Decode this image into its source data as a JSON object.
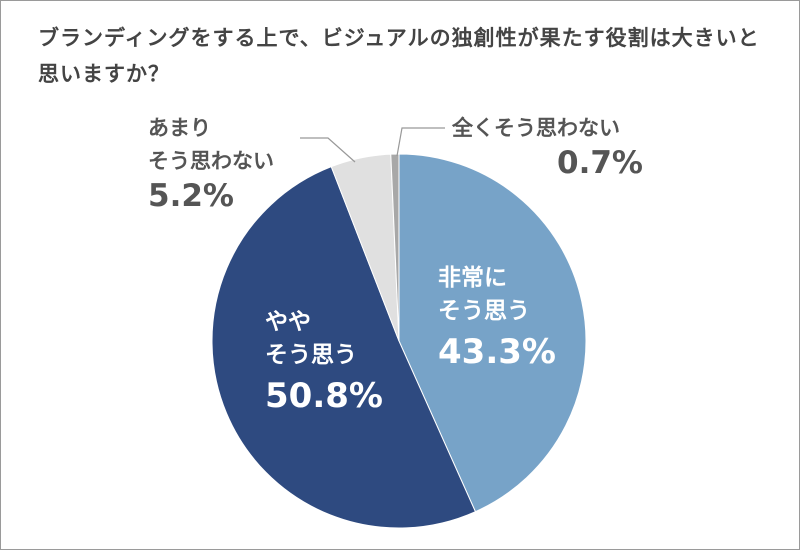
{
  "chart_data": {
    "type": "pie",
    "title": "ブランディングをする上で、ビジュアルの独創性が果たす役割は大きいと思いますか？",
    "start_angle": "12 o'clock",
    "direction": "clockwise",
    "slices": [
      {
        "label": "非常にそう思う",
        "label_lines": [
          "非常に",
          "そう思う"
        ],
        "value": 43.3,
        "value_label": "43.3%",
        "color": "#77a3c8",
        "text_color": "#ffffff"
      },
      {
        "label": "ややそう思う",
        "label_lines": [
          "やや",
          "そう思う"
        ],
        "value": 50.8,
        "value_label": "50.8%",
        "color": "#2e4a80",
        "text_color": "#ffffff"
      },
      {
        "label": "あまりそう思わない",
        "label_lines": [
          "あまり",
          "そう思わない"
        ],
        "value": 5.2,
        "value_label": "5.2%",
        "color": "#e0e0e0",
        "text_color": "#555555"
      },
      {
        "label": "全くそう思わない",
        "label_lines": [
          "全くそう思わない"
        ],
        "value": 0.7,
        "value_label": "0.7%",
        "color": "#a8a8a8",
        "text_color": "#555555"
      }
    ]
  }
}
